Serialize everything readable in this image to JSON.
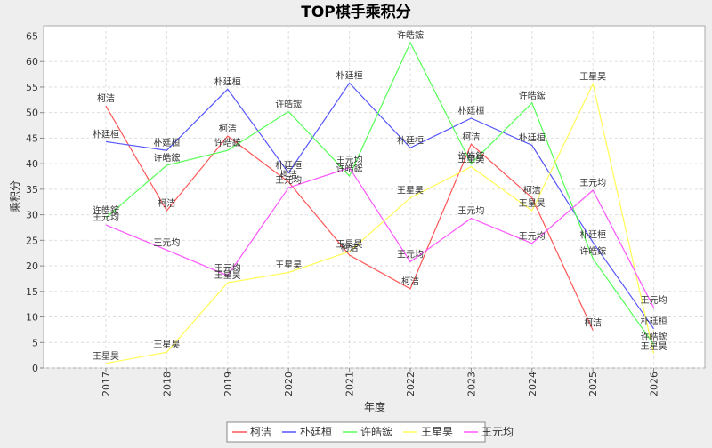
{
  "chart_data": {
    "type": "line",
    "title": "TOP棋手乘积分",
    "xlabel": "年度",
    "ylabel": "乘积分",
    "categories": [
      "2017",
      "2018",
      "2019",
      "2020",
      "2021",
      "2022",
      "2023",
      "2024",
      "2025",
      "2026"
    ],
    "ylim": [
      0,
      67
    ],
    "yticks": [
      0,
      5,
      10,
      15,
      20,
      25,
      30,
      35,
      40,
      45,
      50,
      55,
      60,
      65
    ],
    "grid": true,
    "legend_position": "bottom",
    "series": [
      {
        "name": "柯洁",
        "color": "#ff5555",
        "values": [
          51.3,
          30.8,
          45.4,
          36.4,
          22.1,
          15.5,
          43.8,
          33.3,
          7.4,
          null
        ]
      },
      {
        "name": "朴廷桓",
        "color": "#5555ff",
        "values": [
          44.3,
          42.6,
          54.6,
          38.2,
          55.8,
          43.1,
          48.9,
          43.6,
          24.6,
          7.7
        ]
      },
      {
        "name": "许皓鋐",
        "color": "#55ff55",
        "values": [
          29.4,
          39.7,
          42.6,
          50.2,
          37.6,
          63.7,
          40.0,
          51.9,
          21.4,
          4.6
        ]
      },
      {
        "name": "王星昊",
        "color": "#ffff55",
        "values": [
          0.9,
          3.1,
          16.7,
          18.7,
          22.8,
          33.3,
          39.4,
          30.8,
          55.6,
          2.8
        ]
      },
      {
        "name": "王元均",
        "color": "#ff55ff",
        "values": [
          28.0,
          23.1,
          18.1,
          35.3,
          39.2,
          20.8,
          29.3,
          24.4,
          34.8,
          11.8
        ]
      }
    ]
  }
}
